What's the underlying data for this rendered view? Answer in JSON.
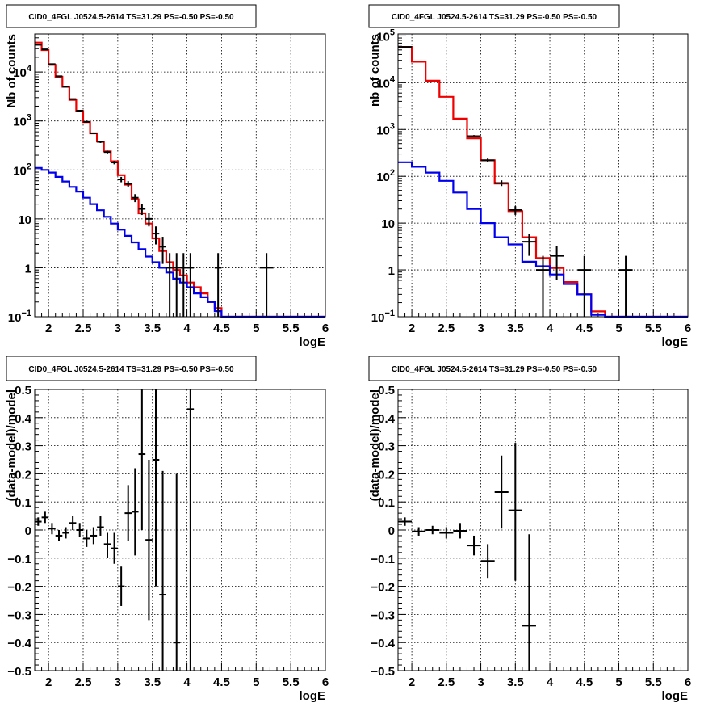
{
  "chart_data": [
    {
      "type": "histogram",
      "title": "CID0_4FGL J0524.5-2614 TS=31.29 PS=-0.50 PS=-0.50",
      "xlabel": "logE",
      "ylabel": "Nb of counts",
      "xlim": [
        1.8,
        6.0
      ],
      "ylim": [
        0.1,
        60000
      ],
      "yscale": "log",
      "grid": true,
      "x_ticks": [
        "2",
        "2.5",
        "3",
        "3.5",
        "4",
        "4.5",
        "5",
        "5.5",
        "6"
      ],
      "y_ticks": [
        {
          "v": 0.1,
          "base": "10",
          "exp": "−1"
        },
        {
          "v": 1,
          "label": "1"
        },
        {
          "v": 10,
          "label": "10"
        },
        {
          "v": 100,
          "base": "10",
          "exp": "2"
        },
        {
          "v": 1000,
          "base": "10",
          "exp": "3"
        },
        {
          "v": 10000,
          "base": "10",
          "exp": "4"
        }
      ],
      "bin_edges": [
        1.8,
        1.9,
        2.0,
        2.1,
        2.2,
        2.3,
        2.4,
        2.5,
        2.6,
        2.7,
        2.8,
        2.9,
        3.0,
        3.1,
        3.2,
        3.3,
        3.4,
        3.5,
        3.6,
        3.7,
        3.8,
        3.9,
        4.0,
        4.1,
        4.2,
        4.3,
        4.4,
        4.5,
        6.0
      ],
      "series": [
        {
          "color": "#ee0000",
          "values": [
            40000,
            28000,
            14000,
            8000,
            5000,
            2700,
            1600,
            950,
            560,
            380,
            240,
            150,
            78,
            50,
            25,
            13,
            8,
            4,
            2.2,
            1.3,
            0.9,
            0.7,
            0.5,
            0.4,
            0.3,
            0.2,
            0.15,
            0.1
          ]
        },
        {
          "color": "#0000ee",
          "values": [
            110,
            100,
            88,
            72,
            58,
            45,
            36,
            27,
            20,
            15,
            11,
            8,
            6,
            4.5,
            3.3,
            2.4,
            1.7,
            1.3,
            1.0,
            0.8,
            0.6,
            0.5,
            0.4,
            0.3,
            0.25,
            0.2,
            0.13,
            0.1
          ]
        }
      ],
      "points": [
        {
          "x": 1.85,
          "y": 36000,
          "ylo": 35800,
          "yhi": 36200
        },
        {
          "x": 1.95,
          "y": 29000,
          "ylo": 28800,
          "yhi": 29200
        },
        {
          "x": 2.05,
          "y": 14500,
          "ylo": 14300,
          "yhi": 14700
        },
        {
          "x": 2.15,
          "y": 8200,
          "ylo": 8100,
          "yhi": 8300
        },
        {
          "x": 2.25,
          "y": 5000,
          "ylo": 4900,
          "yhi": 5100
        },
        {
          "x": 2.35,
          "y": 2800,
          "ylo": 2750,
          "yhi": 2850
        },
        {
          "x": 2.45,
          "y": 1620,
          "ylo": 1580,
          "yhi": 1660
        },
        {
          "x": 2.55,
          "y": 960,
          "ylo": 930,
          "yhi": 990
        },
        {
          "x": 2.65,
          "y": 560,
          "ylo": 540,
          "yhi": 580
        },
        {
          "x": 2.75,
          "y": 375,
          "ylo": 355,
          "yhi": 395
        },
        {
          "x": 2.85,
          "y": 232,
          "ylo": 218,
          "yhi": 246
        },
        {
          "x": 2.95,
          "y": 142,
          "ylo": 130,
          "yhi": 154
        },
        {
          "x": 3.05,
          "y": 64,
          "ylo": 56,
          "yhi": 72
        },
        {
          "x": 3.15,
          "y": 52,
          "ylo": 45,
          "yhi": 59
        },
        {
          "x": 3.25,
          "y": 27,
          "ylo": 22,
          "yhi": 32
        },
        {
          "x": 3.35,
          "y": 16,
          "ylo": 12,
          "yhi": 20
        },
        {
          "x": 3.45,
          "y": 10,
          "ylo": 7,
          "yhi": 13
        },
        {
          "x": 3.55,
          "y": 5,
          "ylo": 3,
          "yhi": 7
        },
        {
          "x": 3.65,
          "y": 2.7,
          "ylo": 1.2,
          "yhi": 4.3
        },
        {
          "x": 3.75,
          "y": 1,
          "ylo": 0.1,
          "yhi": 2
        },
        {
          "x": 3.85,
          "y": 1,
          "ylo": 0.1,
          "yhi": 2
        },
        {
          "x": 3.95,
          "y": 1,
          "ylo": 0.1,
          "yhi": 2
        },
        {
          "x": 4.05,
          "y": 1,
          "ylo": 0.1,
          "yhi": 2
        },
        {
          "x": 4.45,
          "y": 1,
          "ylo": 0.1,
          "yhi": 2
        },
        {
          "x": 5.15,
          "y": 1,
          "ylo": 0.1,
          "yhi": 2
        }
      ]
    },
    {
      "type": "histogram",
      "title": "CID0_4FGL J0524.5-2614 TS=31.29 PS=-0.50 PS=-0.50",
      "xlabel": "logE",
      "ylabel": "nb of counts",
      "xlim": [
        1.8,
        6.0
      ],
      "ylim": [
        0.1,
        110000
      ],
      "yscale": "log",
      "grid": true,
      "x_ticks": [
        "2",
        "2.5",
        "3",
        "3.5",
        "4",
        "4.5",
        "5",
        "5.5",
        "6"
      ],
      "y_ticks": [
        {
          "v": 0.1,
          "base": "10",
          "exp": "−1"
        },
        {
          "v": 1,
          "label": "1"
        },
        {
          "v": 10,
          "label": "10"
        },
        {
          "v": 100,
          "base": "10",
          "exp": "2"
        },
        {
          "v": 1000,
          "base": "10",
          "exp": "3"
        },
        {
          "v": 10000,
          "base": "10",
          "exp": "4"
        },
        {
          "v": 100000,
          "base": "10",
          "exp": "5"
        }
      ],
      "bin_edges": [
        1.8,
        2.0,
        2.2,
        2.4,
        2.6,
        2.8,
        3.0,
        3.2,
        3.4,
        3.6,
        3.8,
        4.0,
        4.2,
        4.4,
        4.6,
        4.8,
        6.0
      ],
      "series": [
        {
          "color": "#ee0000",
          "values": [
            58000,
            28000,
            11000,
            5000,
            1700,
            650,
            220,
            70,
            18,
            5,
            1.8,
            1.1,
            0.55,
            0.3,
            0.13,
            0.1
          ]
        },
        {
          "color": "#0000ee",
          "values": [
            200,
            160,
            120,
            80,
            45,
            20,
            10,
            5,
            3.5,
            1.5,
            1.2,
            0.8,
            0.5,
            0.3,
            0.11,
            0.1
          ]
        }
      ],
      "points": [
        {
          "x": 1.9,
          "y": 58000,
          "ylo": 57500,
          "yhi": 58500
        },
        {
          "x": 2.9,
          "y": 720,
          "ylo": 680,
          "yhi": 760
        },
        {
          "x": 3.1,
          "y": 220,
          "ylo": 200,
          "yhi": 240
        },
        {
          "x": 3.3,
          "y": 72,
          "ylo": 62,
          "yhi": 82
        },
        {
          "x": 3.5,
          "y": 19,
          "ylo": 15,
          "yhi": 23
        },
        {
          "x": 3.7,
          "y": 4,
          "ylo": 2,
          "yhi": 6
        },
        {
          "x": 3.9,
          "y": 1,
          "ylo": 0.1,
          "yhi": 2
        },
        {
          "x": 4.1,
          "y": 2,
          "ylo": 0.6,
          "yhi": 3.3
        },
        {
          "x": 4.5,
          "y": 1,
          "ylo": 0.1,
          "yhi": 2
        },
        {
          "x": 5.1,
          "y": 1,
          "ylo": 0.1,
          "yhi": 2
        }
      ]
    },
    {
      "type": "scatter",
      "title": "CID0_4FGL J0524.5-2614 TS=31.29 PS=-0.50 PS=-0.50",
      "xlabel": "logE",
      "ylabel": "(data-model)/model",
      "xlim": [
        1.8,
        6.0
      ],
      "ylim": [
        -0.5,
        0.5
      ],
      "yscale": "linear",
      "grid": true,
      "x_ticks": [
        "2",
        "2.5",
        "3",
        "3.5",
        "4",
        "4.5",
        "5",
        "5.5",
        "6"
      ],
      "y_ticks": [
        "−0.5",
        "−0.4",
        "−0.3",
        "−0.2",
        "−0.1",
        "0",
        "0.1",
        "0.2",
        "0.3",
        "0.4",
        "0.5"
      ],
      "xerr": 0.05,
      "points": [
        {
          "x": 1.85,
          "y": 0.03,
          "ylo": 0.015,
          "yhi": 0.045
        },
        {
          "x": 1.95,
          "y": 0.045,
          "ylo": 0.025,
          "yhi": 0.065
        },
        {
          "x": 2.05,
          "y": 0.005,
          "ylo": -0.015,
          "yhi": 0.025
        },
        {
          "x": 2.15,
          "y": -0.02,
          "ylo": -0.04,
          "yhi": 0.0
        },
        {
          "x": 2.25,
          "y": -0.01,
          "ylo": -0.03,
          "yhi": 0.01
        },
        {
          "x": 2.35,
          "y": 0.025,
          "ylo": 0.0,
          "yhi": 0.05
        },
        {
          "x": 2.45,
          "y": 0.0,
          "ylo": -0.025,
          "yhi": 0.025
        },
        {
          "x": 2.55,
          "y": -0.03,
          "ylo": -0.06,
          "yhi": 0.0
        },
        {
          "x": 2.65,
          "y": -0.02,
          "ylo": -0.05,
          "yhi": 0.01
        },
        {
          "x": 2.75,
          "y": 0.01,
          "ylo": -0.02,
          "yhi": 0.05
        },
        {
          "x": 2.85,
          "y": -0.05,
          "ylo": -0.1,
          "yhi": -0.01
        },
        {
          "x": 2.95,
          "y": -0.065,
          "ylo": -0.12,
          "yhi": -0.01
        },
        {
          "x": 3.05,
          "y": -0.2,
          "ylo": -0.27,
          "yhi": -0.13
        },
        {
          "x": 3.15,
          "y": 0.06,
          "ylo": -0.04,
          "yhi": 0.16
        },
        {
          "x": 3.25,
          "y": 0.065,
          "ylo": -0.09,
          "yhi": 0.22
        },
        {
          "x": 3.35,
          "y": 0.27,
          "ylo": 0.0,
          "yhi": 0.5
        },
        {
          "x": 3.45,
          "y": -0.035,
          "ylo": -0.32,
          "yhi": 0.25
        },
        {
          "x": 3.55,
          "y": 0.25,
          "ylo": -0.2,
          "yhi": 0.5
        },
        {
          "x": 3.65,
          "y": -0.23,
          "ylo": -0.5,
          "yhi": 0.21
        },
        {
          "x": 3.85,
          "y": -0.4,
          "ylo": -0.5,
          "yhi": 0.2
        },
        {
          "x": 4.05,
          "y": 0.43,
          "ylo": -0.5,
          "yhi": 0.5
        }
      ]
    },
    {
      "type": "scatter",
      "title": "CID0_4FGL J0524.5-2614 TS=31.29 PS=-0.50 PS=-0.50",
      "xlabel": "logE",
      "ylabel": "(data-model)/model",
      "xlim": [
        1.8,
        6.0
      ],
      "ylim": [
        -0.5,
        0.5
      ],
      "yscale": "linear",
      "grid": true,
      "x_ticks": [
        "2",
        "2.5",
        "3",
        "3.5",
        "4",
        "4.5",
        "5",
        "5.5",
        "6"
      ],
      "y_ticks": [
        "−0.5",
        "−0.4",
        "−0.3",
        "−0.2",
        "−0.1",
        "0",
        "0.1",
        "0.2",
        "0.3",
        "0.4",
        "0.5"
      ],
      "xerr": 0.1,
      "points": [
        {
          "x": 1.9,
          "y": 0.03,
          "ylo": 0.015,
          "yhi": 0.045
        },
        {
          "x": 2.1,
          "y": -0.005,
          "ylo": -0.02,
          "yhi": 0.01
        },
        {
          "x": 2.3,
          "y": 0.0,
          "ylo": -0.015,
          "yhi": 0.015
        },
        {
          "x": 2.5,
          "y": -0.01,
          "ylo": -0.03,
          "yhi": 0.01
        },
        {
          "x": 2.7,
          "y": -0.003,
          "ylo": -0.03,
          "yhi": 0.025
        },
        {
          "x": 2.9,
          "y": -0.055,
          "ylo": -0.09,
          "yhi": -0.02
        },
        {
          "x": 3.1,
          "y": -0.11,
          "ylo": -0.17,
          "yhi": -0.05
        },
        {
          "x": 3.3,
          "y": 0.135,
          "ylo": 0.005,
          "yhi": 0.265
        },
        {
          "x": 3.5,
          "y": 0.07,
          "ylo": -0.18,
          "yhi": 0.31
        },
        {
          "x": 3.7,
          "y": -0.34,
          "ylo": -0.5,
          "yhi": -0.015
        }
      ]
    }
  ]
}
